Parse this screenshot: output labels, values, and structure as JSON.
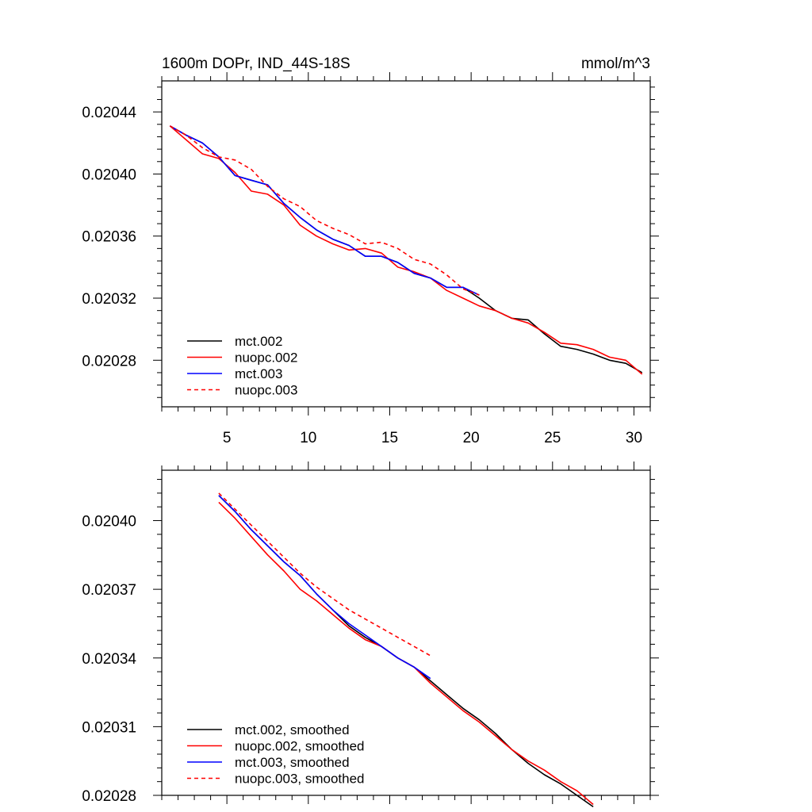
{
  "chart_data": [
    {
      "type": "line",
      "title_left": "1600m DOPr, IND_44S-18S",
      "title_right": "mmol/m^3",
      "xlabel": "",
      "ylabel": "",
      "xlim": [
        1,
        31
      ],
      "ylim": [
        0.02025,
        0.02046
      ],
      "x_ticks": [
        5,
        10,
        15,
        20,
        25,
        30
      ],
      "x_tick_labels": [
        "5",
        "10",
        "15",
        "20",
        "25",
        "30"
      ],
      "y_ticks": [
        0.02028,
        0.02032,
        0.02036,
        0.0204,
        0.02044
      ],
      "y_tick_labels": [
        "0.02028",
        "0.02032",
        "0.02036",
        "0.02040",
        "0.02044"
      ],
      "legend_position": "bottom-left",
      "series": [
        {
          "name": "mct.002",
          "color": "#000000",
          "dash": "solid",
          "x": [
            1.5,
            2.5,
            3.5,
            4.5,
            5.5,
            6.5,
            7.5,
            8.5,
            9.5,
            10.5,
            11.5,
            12.5,
            13.5,
            14.5,
            15.5,
            16.5,
            17.5,
            18.5,
            19.5,
            20.5,
            21.5,
            22.5,
            23.5,
            24.5,
            25.5,
            26.5,
            27.5,
            28.5,
            29.5,
            30.5
          ],
          "y": [
            0.020431,
            0.020425,
            0.02042,
            0.020411,
            0.020399,
            0.020396,
            0.020393,
            0.020381,
            0.020372,
            0.020364,
            0.020358,
            0.020354,
            0.020347,
            0.020347,
            0.020343,
            0.020336,
            0.020333,
            0.020327,
            0.020327,
            0.02032,
            0.020312,
            0.020307,
            0.020306,
            0.020297,
            0.020289,
            0.020287,
            0.020284,
            0.02028,
            0.020278,
            0.020272
          ]
        },
        {
          "name": "nuopc.002",
          "color": "#ff0000",
          "dash": "solid",
          "x": [
            1.5,
            2.5,
            3.5,
            4.5,
            5.5,
            6.5,
            7.5,
            8.5,
            9.5,
            10.5,
            11.5,
            12.5,
            13.5,
            14.5,
            15.5,
            16.5,
            17.5,
            18.5,
            19.5,
            20.5,
            21.5,
            22.5,
            23.5,
            24.5,
            25.5,
            26.5,
            27.5,
            28.5,
            29.5,
            30.5
          ],
          "y": [
            0.020431,
            0.020422,
            0.020413,
            0.02041,
            0.020401,
            0.020389,
            0.020387,
            0.02038,
            0.020367,
            0.02036,
            0.020355,
            0.020351,
            0.020352,
            0.020349,
            0.02034,
            0.020337,
            0.020333,
            0.020325,
            0.02032,
            0.020315,
            0.020312,
            0.020307,
            0.020304,
            0.020298,
            0.020291,
            0.02029,
            0.020287,
            0.020282,
            0.02028,
            0.020271
          ]
        },
        {
          "name": "mct.003",
          "color": "#0000ff",
          "dash": "solid",
          "x": [
            1.5,
            2.5,
            3.5,
            4.5,
            5.5,
            6.5,
            7.5,
            8.5,
            9.5,
            10.5,
            11.5,
            12.5,
            13.5,
            14.5,
            15.5,
            16.5,
            17.5,
            18.5,
            19.5,
            20.5
          ],
          "y": [
            0.020431,
            0.020425,
            0.02042,
            0.020411,
            0.020399,
            0.020396,
            0.020393,
            0.020381,
            0.020372,
            0.020364,
            0.020358,
            0.020354,
            0.020347,
            0.020347,
            0.020343,
            0.020336,
            0.020333,
            0.020327,
            0.020327,
            0.020322
          ]
        },
        {
          "name": "nuopc.003",
          "color": "#ff0000",
          "dash": "dashed",
          "x": [
            1.5,
            2.5,
            3.5,
            4.5,
            5.5,
            6.5,
            7.5,
            8.5,
            9.5,
            10.5,
            11.5,
            12.5,
            13.5,
            14.5,
            15.5,
            16.5,
            17.5,
            18.5,
            19.5,
            20.5
          ],
          "y": [
            0.020431,
            0.020425,
            0.020417,
            0.020411,
            0.020409,
            0.020403,
            0.020392,
            0.020384,
            0.020379,
            0.02037,
            0.020365,
            0.020361,
            0.020355,
            0.020356,
            0.020352,
            0.020345,
            0.020342,
            0.020335,
            0.020326,
            0.020322
          ]
        }
      ]
    },
    {
      "type": "line",
      "xlabel": "",
      "ylabel": "",
      "xlim": [
        1,
        31
      ],
      "ylim": [
        0.02028,
        0.020422
      ],
      "x_ticks": [
        5,
        10,
        15,
        20,
        25,
        30
      ],
      "x_tick_labels": [],
      "y_ticks": [
        0.02028,
        0.02031,
        0.02034,
        0.02037,
        0.0204
      ],
      "y_tick_labels": [
        "0.02028",
        "0.02031",
        "0.02034",
        "0.02037",
        "0.02040"
      ],
      "legend_position": "bottom-left",
      "series": [
        {
          "name": "mct.002, smoothed",
          "color": "#000000",
          "dash": "solid",
          "x": [
            4.5,
            5.5,
            6.5,
            7.5,
            8.5,
            9.5,
            10.5,
            11.5,
            12.5,
            13.5,
            14.5,
            15.5,
            16.5,
            17.5,
            18.5,
            19.5,
            20.5,
            21.5,
            22.5,
            23.5,
            24.5,
            25.5,
            26.5,
            27.5
          ],
          "y": [
            0.020411,
            0.020404,
            0.020396,
            0.020389,
            0.020382,
            0.020376,
            0.020368,
            0.020361,
            0.020354,
            0.020349,
            0.020345,
            0.02034,
            0.020336,
            0.02033,
            0.020324,
            0.020318,
            0.020313,
            0.020307,
            0.0203,
            0.020294,
            0.020289,
            0.020285,
            0.02028,
            0.020275
          ]
        },
        {
          "name": "nuopc.002, smoothed",
          "color": "#ff0000",
          "dash": "solid",
          "x": [
            4.5,
            5.5,
            6.5,
            7.5,
            8.5,
            9.5,
            10.5,
            11.5,
            12.5,
            13.5,
            14.5,
            15.5,
            16.5,
            17.5,
            18.5,
            19.5,
            20.5,
            21.5,
            22.5,
            23.5,
            24.5,
            25.5,
            26.5,
            27.5
          ],
          "y": [
            0.020408,
            0.020401,
            0.020393,
            0.020385,
            0.020378,
            0.02037,
            0.020365,
            0.020359,
            0.020353,
            0.020348,
            0.020345,
            0.02034,
            0.020336,
            0.020329,
            0.020323,
            0.020317,
            0.020312,
            0.020306,
            0.0203,
            0.020295,
            0.020291,
            0.020286,
            0.020282,
            0.020276
          ]
        },
        {
          "name": "mct.003, smoothed",
          "color": "#0000ff",
          "dash": "solid",
          "x": [
            4.5,
            5.5,
            6.5,
            7.5,
            8.5,
            9.5,
            10.5,
            11.5,
            12.5,
            13.5,
            14.5,
            15.5,
            16.5,
            17.5
          ],
          "y": [
            0.020411,
            0.020404,
            0.020396,
            0.020389,
            0.020382,
            0.020376,
            0.020368,
            0.020361,
            0.020355,
            0.02035,
            0.020345,
            0.02034,
            0.020336,
            0.020331
          ]
        },
        {
          "name": "nuopc.003, smoothed",
          "color": "#ff0000",
          "dash": "dashed",
          "x": [
            4.5,
            5.5,
            6.5,
            7.5,
            8.5,
            9.5,
            10.5,
            11.5,
            12.5,
            13.5,
            14.5,
            15.5,
            16.5,
            17.5
          ],
          "y": [
            0.020412,
            0.020405,
            0.020398,
            0.020391,
            0.020384,
            0.020377,
            0.020371,
            0.020366,
            0.020361,
            0.020357,
            0.020353,
            0.020349,
            0.020345,
            0.020341
          ]
        }
      ]
    }
  ]
}
